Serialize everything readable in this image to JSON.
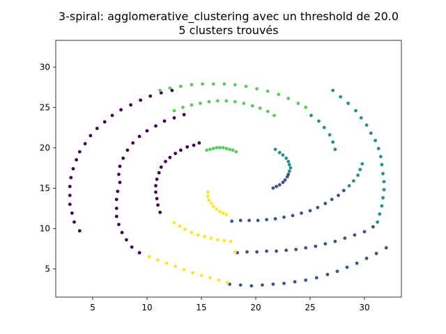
{
  "chart_data": {
    "type": "scatter",
    "title_line1": "3-spiral: agglomerative_clustering avec un threshold de 20.0",
    "title_line2": "5 clusters trouvés",
    "xlabel": "",
    "ylabel": "",
    "xlim": [
      1.6,
      33.4
    ],
    "ylim": [
      1.5,
      33.3
    ],
    "x_ticks": [
      5,
      10,
      15,
      20,
      25,
      30
    ],
    "y_ticks": [
      5,
      10,
      15,
      20,
      25,
      30
    ],
    "grid": false,
    "point_radius": 2.4,
    "series": [
      {
        "color": "#440154",
        "points": [
          [
            3.8,
            9.7
          ],
          [
            3.3,
            10.8
          ],
          [
            3.1,
            11.9
          ],
          [
            2.9,
            13.0
          ],
          [
            2.9,
            14.1
          ],
          [
            2.9,
            15.2
          ],
          [
            3.0,
            16.3
          ],
          [
            3.2,
            17.4
          ],
          [
            3.5,
            18.5
          ],
          [
            3.8,
            19.5
          ],
          [
            4.3,
            20.5
          ],
          [
            4.8,
            21.5
          ],
          [
            5.4,
            22.4
          ],
          [
            6.1,
            23.2
          ],
          [
            6.8,
            24.0
          ],
          [
            7.6,
            24.7
          ],
          [
            8.5,
            25.3
          ],
          [
            9.4,
            25.9
          ],
          [
            10.3,
            26.4
          ],
          [
            11.3,
            26.8
          ],
          [
            12.3,
            27.1
          ],
          [
            7.5,
            15.7
          ],
          [
            7.4,
            16.7
          ],
          [
            7.5,
            17.7
          ],
          [
            7.8,
            18.7
          ],
          [
            8.2,
            19.7
          ],
          [
            8.7,
            20.6
          ],
          [
            9.3,
            21.4
          ],
          [
            10.0,
            22.1
          ],
          [
            10.8,
            22.7
          ],
          [
            11.6,
            23.3
          ],
          [
            12.5,
            23.7
          ],
          [
            13.4,
            24.1
          ],
          [
            11.2,
            12.0
          ],
          [
            11.0,
            12.9
          ],
          [
            10.9,
            13.7
          ],
          [
            10.8,
            14.5
          ],
          [
            10.8,
            15.3
          ],
          [
            10.9,
            16.1
          ],
          [
            11.1,
            16.9
          ],
          [
            11.3,
            17.6
          ],
          [
            11.7,
            18.3
          ],
          [
            12.1,
            18.8
          ],
          [
            12.6,
            19.3
          ],
          [
            13.1,
            19.7
          ],
          [
            13.7,
            20.1
          ],
          [
            14.3,
            20.3
          ],
          [
            14.8,
            20.6
          ],
          [
            9.3,
            7.0
          ],
          [
            8.6,
            7.7
          ],
          [
            8.1,
            8.6
          ],
          [
            7.7,
            9.5
          ],
          [
            7.4,
            10.5
          ],
          [
            7.2,
            11.5
          ],
          [
            7.2,
            12.5
          ],
          [
            7.2,
            13.6
          ],
          [
            7.3,
            14.6
          ]
        ]
      },
      {
        "color": "#3b528b",
        "points": [
          [
            21.6,
            15.0
          ],
          [
            21.9,
            15.2
          ],
          [
            22.2,
            15.4
          ],
          [
            22.5,
            15.7
          ],
          [
            22.7,
            16.0
          ],
          [
            22.9,
            16.4
          ],
          [
            23.0,
            16.7
          ],
          [
            17.8,
            10.9
          ],
          [
            18.6,
            11.0
          ],
          [
            19.4,
            11.0
          ],
          [
            20.2,
            11.0
          ],
          [
            21.0,
            11.1
          ],
          [
            21.8,
            11.2
          ],
          [
            22.6,
            11.4
          ],
          [
            23.4,
            11.6
          ],
          [
            24.2,
            11.9
          ],
          [
            25.0,
            12.2
          ],
          [
            25.7,
            12.6
          ],
          [
            26.4,
            13.1
          ],
          [
            27.0,
            13.6
          ],
          [
            27.6,
            14.1
          ],
          [
            28.1,
            14.7
          ],
          [
            17.6,
            3.1
          ],
          [
            18.6,
            3.0
          ],
          [
            19.6,
            2.9
          ],
          [
            20.6,
            3.0
          ],
          [
            21.6,
            3.1
          ],
          [
            22.6,
            3.2
          ],
          [
            23.6,
            3.4
          ],
          [
            24.6,
            3.6
          ],
          [
            25.6,
            3.9
          ],
          [
            26.6,
            4.3
          ],
          [
            27.5,
            4.7
          ],
          [
            28.4,
            5.2
          ],
          [
            29.3,
            5.7
          ],
          [
            30.2,
            6.3
          ],
          [
            31.1,
            6.9
          ],
          [
            32.0,
            7.6
          ],
          [
            18.3,
            7.0
          ],
          [
            19.2,
            7.1
          ],
          [
            20.1,
            7.1
          ],
          [
            21.0,
            7.2
          ],
          [
            21.9,
            7.2
          ],
          [
            22.8,
            7.3
          ],
          [
            23.7,
            7.4
          ],
          [
            24.6,
            7.6
          ],
          [
            25.5,
            7.8
          ],
          [
            26.4,
            8.1
          ],
          [
            27.3,
            8.4
          ],
          [
            28.2,
            8.8
          ],
          [
            29.1,
            9.2
          ],
          [
            30.0,
            9.6
          ],
          [
            30.8,
            10.2
          ]
        ]
      },
      {
        "color": "#21918c",
        "points": [
          [
            21.8,
            19.8
          ],
          [
            22.2,
            19.4
          ],
          [
            22.5,
            19.1
          ],
          [
            22.8,
            18.7
          ],
          [
            23.0,
            18.3
          ],
          [
            23.1,
            17.9
          ],
          [
            23.2,
            17.5
          ],
          [
            23.1,
            17.1
          ],
          [
            27.3,
            19.8
          ],
          [
            27.1,
            20.7
          ],
          [
            26.8,
            21.6
          ],
          [
            26.3,
            22.5
          ],
          [
            25.8,
            23.3
          ],
          [
            25.1,
            24.0
          ],
          [
            28.6,
            15.3
          ],
          [
            29.0,
            15.9
          ],
          [
            29.4,
            16.6
          ],
          [
            29.6,
            17.3
          ],
          [
            29.8,
            18.0
          ],
          [
            31.2,
            10.8
          ],
          [
            31.4,
            11.8
          ],
          [
            31.6,
            12.8
          ],
          [
            31.7,
            13.8
          ],
          [
            31.8,
            14.8
          ],
          [
            31.8,
            15.8
          ],
          [
            31.7,
            16.8
          ],
          [
            31.6,
            17.9
          ],
          [
            31.5,
            18.9
          ],
          [
            31.3,
            19.9
          ],
          [
            31.0,
            20.9
          ],
          [
            30.6,
            21.8
          ],
          [
            30.2,
            22.8
          ],
          [
            29.7,
            23.7
          ],
          [
            29.2,
            24.6
          ],
          [
            28.5,
            25.5
          ],
          [
            27.8,
            26.3
          ],
          [
            27.1,
            27.1
          ]
        ]
      },
      {
        "color": "#5ec962",
        "points": [
          [
            15.5,
            19.7
          ],
          [
            15.8,
            19.8
          ],
          [
            16.1,
            19.9
          ],
          [
            16.4,
            20.0
          ],
          [
            16.7,
            20.0
          ],
          [
            17.0,
            20.0
          ],
          [
            17.3,
            19.9
          ],
          [
            17.6,
            19.8
          ],
          [
            17.9,
            19.7
          ],
          [
            18.2,
            19.5
          ],
          [
            12.5,
            24.6
          ],
          [
            13.3,
            25.0
          ],
          [
            14.1,
            25.3
          ],
          [
            14.9,
            25.5
          ],
          [
            15.7,
            25.7
          ],
          [
            16.5,
            25.8
          ],
          [
            17.3,
            25.8
          ],
          [
            18.1,
            25.7
          ],
          [
            18.9,
            25.5
          ],
          [
            19.7,
            25.2
          ],
          [
            20.4,
            24.9
          ],
          [
            21.1,
            24.5
          ],
          [
            21.7,
            24.0
          ],
          [
            11.2,
            27.1
          ],
          [
            12.1,
            27.4
          ],
          [
            13.1,
            27.6
          ],
          [
            14.1,
            27.8
          ],
          [
            15.1,
            27.9
          ],
          [
            16.1,
            27.9
          ],
          [
            17.1,
            27.9
          ],
          [
            18.1,
            27.8
          ],
          [
            19.1,
            27.6
          ],
          [
            20.1,
            27.3
          ],
          [
            21.1,
            27.0
          ],
          [
            22.1,
            26.6
          ],
          [
            23.0,
            26.1
          ],
          [
            23.9,
            25.5
          ],
          [
            24.6,
            25.0
          ]
        ]
      },
      {
        "color": "#fde725",
        "points": [
          [
            15.6,
            14.5
          ],
          [
            15.6,
            14.0
          ],
          [
            15.7,
            13.5
          ],
          [
            15.9,
            13.1
          ],
          [
            16.1,
            12.7
          ],
          [
            16.4,
            12.4
          ],
          [
            16.7,
            12.1
          ],
          [
            17.0,
            11.9
          ],
          [
            17.3,
            11.7
          ],
          [
            12.5,
            10.7
          ],
          [
            13.0,
            10.3
          ],
          [
            13.5,
            9.9
          ],
          [
            14.1,
            9.5
          ],
          [
            14.7,
            9.2
          ],
          [
            15.3,
            9.0
          ],
          [
            15.9,
            8.8
          ],
          [
            16.5,
            8.6
          ],
          [
            17.1,
            8.5
          ],
          [
            17.7,
            8.4
          ],
          [
            18.1,
            7.1
          ],
          [
            10.2,
            6.5
          ],
          [
            11.0,
            6.1
          ],
          [
            11.8,
            5.7
          ],
          [
            12.6,
            5.3
          ],
          [
            13.4,
            4.9
          ],
          [
            14.2,
            4.5
          ],
          [
            15.0,
            4.2
          ],
          [
            15.8,
            3.9
          ],
          [
            16.6,
            3.6
          ],
          [
            17.4,
            3.3
          ]
        ]
      }
    ]
  }
}
